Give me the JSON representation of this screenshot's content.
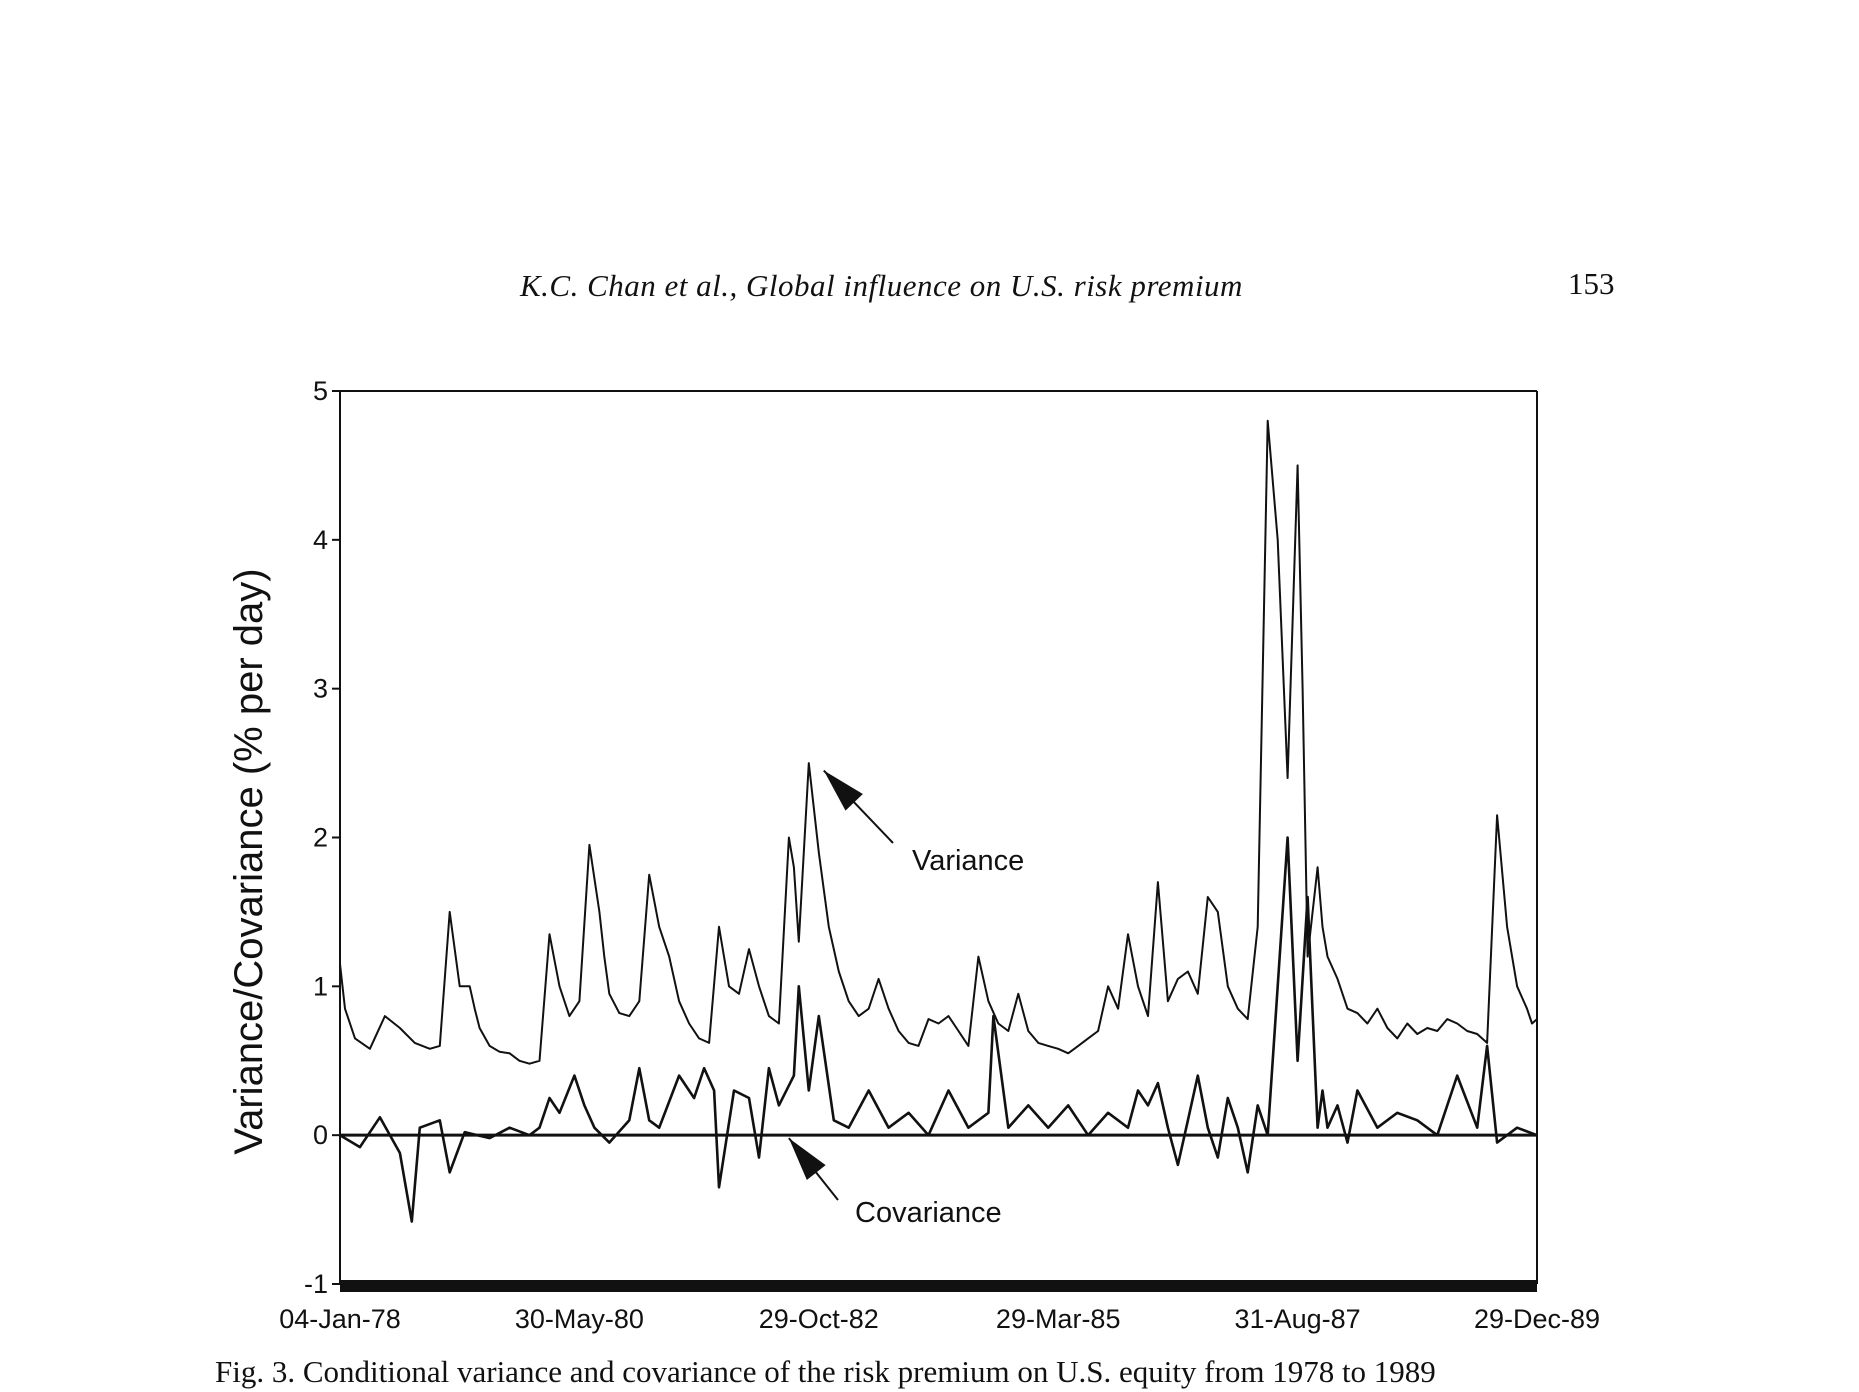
{
  "page": {
    "running_head": "K.C. Chan et al., Global influence on U.S. risk premium",
    "page_number": "153",
    "caption": "Fig. 3. Conditional variance and covariance of the risk premium on U.S. equity from 1978 to 1989"
  },
  "chart_data": {
    "type": "line",
    "title": "",
    "xlabel": "",
    "ylabel": "Variance/Covariance (% per day)",
    "x_tick_labels": [
      "04-Jan-78",
      "30-May-80",
      "29-Oct-82",
      "29-Mar-85",
      "31-Aug-87",
      "29-Dec-89"
    ],
    "y_ticks": [
      -1,
      0,
      1,
      2,
      3,
      4,
      5
    ],
    "ylim": [
      -1,
      5
    ],
    "grid": false,
    "legend": "none",
    "annotations": [
      {
        "text": "Variance",
        "points_to_series": "Variance",
        "target": {
          "x": 4.85,
          "y": 2.45
        }
      },
      {
        "text": "Covariance",
        "points_to_series": "Covariance",
        "target": {
          "x": 4.5,
          "y": -0.02
        }
      }
    ],
    "x_unit": "years since 04-Jan-78",
    "series": [
      {
        "name": "Variance",
        "x": [
          0.0,
          0.05,
          0.15,
          0.3,
          0.45,
          0.6,
          0.75,
          0.9,
          1.0,
          1.1,
          1.2,
          1.3,
          1.35,
          1.4,
          1.5,
          1.6,
          1.7,
          1.8,
          1.9,
          2.0,
          2.1,
          2.2,
          2.3,
          2.4,
          2.5,
          2.6,
          2.65,
          2.7,
          2.8,
          2.9,
          3.0,
          3.1,
          3.2,
          3.3,
          3.4,
          3.5,
          3.6,
          3.7,
          3.8,
          3.9,
          4.0,
          4.1,
          4.2,
          4.3,
          4.4,
          4.5,
          4.55,
          4.6,
          4.7,
          4.8,
          4.9,
          5.0,
          5.1,
          5.2,
          5.3,
          5.4,
          5.5,
          5.6,
          5.7,
          5.8,
          5.9,
          6.0,
          6.1,
          6.2,
          6.3,
          6.4,
          6.5,
          6.6,
          6.7,
          6.8,
          6.9,
          7.0,
          7.1,
          7.2,
          7.3,
          7.4,
          7.5,
          7.6,
          7.7,
          7.8,
          7.9,
          8.0,
          8.1,
          8.2,
          8.3,
          8.4,
          8.5,
          8.6,
          8.7,
          8.8,
          8.9,
          9.0,
          9.1,
          9.2,
          9.3,
          9.4,
          9.5,
          9.6,
          9.65,
          9.7,
          9.75,
          9.8,
          9.85,
          9.9,
          10.0,
          10.1,
          10.2,
          10.3,
          10.4,
          10.5,
          10.6,
          10.7,
          10.8,
          10.9,
          11.0,
          11.1,
          11.2,
          11.3,
          11.4,
          11.5,
          11.6,
          11.7,
          11.8,
          11.9,
          11.95,
          12.0
        ],
        "y": [
          1.15,
          0.85,
          0.65,
          0.58,
          0.8,
          0.72,
          0.62,
          0.58,
          0.6,
          1.5,
          1.0,
          1.0,
          0.85,
          0.72,
          0.6,
          0.56,
          0.55,
          0.5,
          0.48,
          0.5,
          1.35,
          1.0,
          0.8,
          0.9,
          1.95,
          1.5,
          1.2,
          0.95,
          0.82,
          0.8,
          0.9,
          1.75,
          1.4,
          1.2,
          0.9,
          0.75,
          0.65,
          0.62,
          1.4,
          1.0,
          0.95,
          1.25,
          1.0,
          0.8,
          0.75,
          2.0,
          1.8,
          1.3,
          2.5,
          1.9,
          1.4,
          1.1,
          0.9,
          0.8,
          0.85,
          1.05,
          0.85,
          0.7,
          0.62,
          0.6,
          0.78,
          0.75,
          0.8,
          0.7,
          0.6,
          1.2,
          0.9,
          0.75,
          0.7,
          0.95,
          0.7,
          0.62,
          0.6,
          0.58,
          0.55,
          0.6,
          0.65,
          0.7,
          1.0,
          0.85,
          1.35,
          1.0,
          0.8,
          1.7,
          0.9,
          1.05,
          1.1,
          0.95,
          1.6,
          1.5,
          1.0,
          0.85,
          0.78,
          1.4,
          4.8,
          4.0,
          2.4,
          4.5,
          3.0,
          1.2,
          1.5,
          1.8,
          1.4,
          1.2,
          1.05,
          0.85,
          0.82,
          0.75,
          0.85,
          0.72,
          0.65,
          0.75,
          0.68,
          0.72,
          0.7,
          0.78,
          0.75,
          0.7,
          0.68,
          0.62,
          2.15,
          1.4,
          1.0,
          0.85,
          0.75,
          0.78
        ]
      },
      {
        "name": "Covariance",
        "x": [
          0.0,
          0.2,
          0.4,
          0.6,
          0.72,
          0.8,
          1.0,
          1.1,
          1.25,
          1.5,
          1.7,
          1.9,
          2.0,
          2.1,
          2.2,
          2.35,
          2.45,
          2.55,
          2.7,
          2.9,
          3.0,
          3.1,
          3.2,
          3.4,
          3.55,
          3.65,
          3.75,
          3.8,
          3.95,
          4.1,
          4.2,
          4.3,
          4.4,
          4.55,
          4.6,
          4.7,
          4.8,
          4.95,
          5.1,
          5.3,
          5.5,
          5.7,
          5.9,
          6.1,
          6.3,
          6.5,
          6.55,
          6.7,
          6.9,
          7.1,
          7.3,
          7.5,
          7.7,
          7.9,
          8.0,
          8.1,
          8.2,
          8.3,
          8.4,
          8.5,
          8.6,
          8.7,
          8.8,
          8.9,
          9.0,
          9.1,
          9.2,
          9.3,
          9.4,
          9.5,
          9.6,
          9.7,
          9.8,
          9.85,
          9.9,
          10.0,
          10.1,
          10.2,
          10.4,
          10.6,
          10.8,
          11.0,
          11.2,
          11.4,
          11.5,
          11.6,
          11.8,
          12.0
        ],
        "y": [
          0.0,
          -0.08,
          0.12,
          -0.12,
          -0.58,
          0.05,
          0.1,
          -0.25,
          0.02,
          -0.02,
          0.05,
          0.0,
          0.05,
          0.25,
          0.15,
          0.4,
          0.2,
          0.05,
          -0.05,
          0.1,
          0.45,
          0.1,
          0.05,
          0.4,
          0.25,
          0.45,
          0.3,
          -0.35,
          0.3,
          0.25,
          -0.15,
          0.45,
          0.2,
          0.4,
          1.0,
          0.3,
          0.8,
          0.1,
          0.05,
          0.3,
          0.05,
          0.15,
          0.0,
          0.3,
          0.05,
          0.15,
          0.8,
          0.05,
          0.2,
          0.05,
          0.2,
          0.0,
          0.15,
          0.05,
          0.3,
          0.2,
          0.35,
          0.05,
          -0.2,
          0.1,
          0.4,
          0.05,
          -0.15,
          0.25,
          0.05,
          -0.25,
          0.2,
          0.0,
          1.0,
          2.0,
          0.5,
          1.6,
          0.05,
          0.3,
          0.05,
          0.2,
          -0.05,
          0.3,
          0.05,
          0.15,
          0.1,
          0.0,
          0.4,
          0.05,
          0.6,
          -0.05,
          0.05,
          0.0
        ]
      }
    ]
  }
}
